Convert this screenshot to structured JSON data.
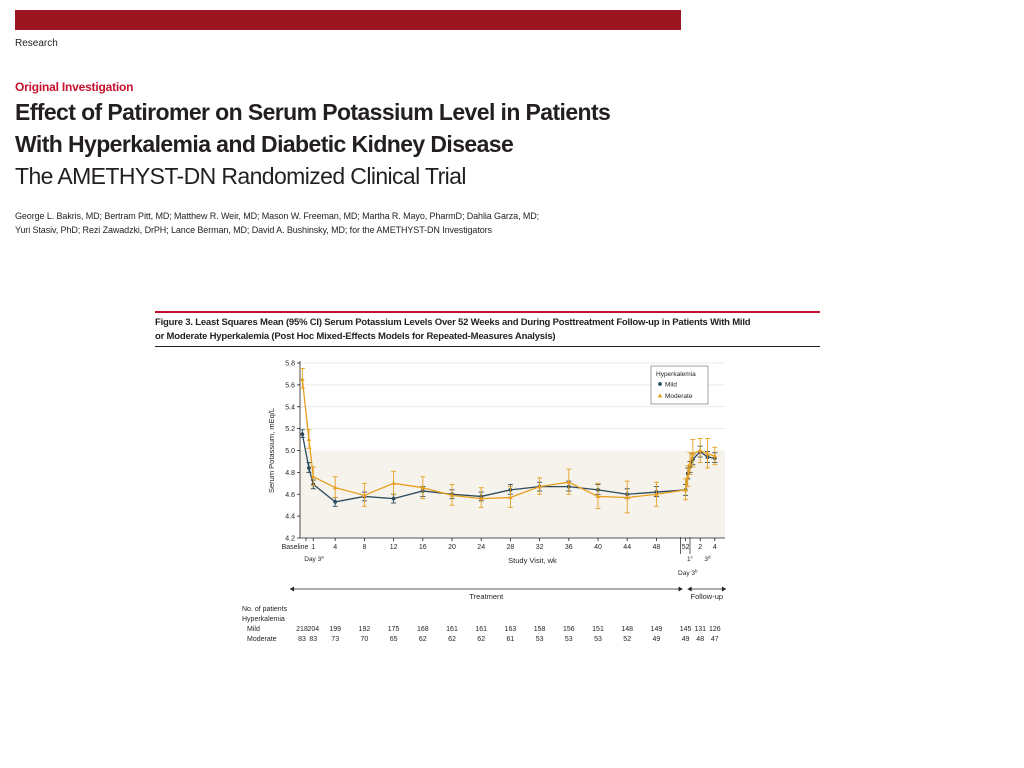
{
  "header": {
    "section": "Research",
    "article_type": "Original Investigation"
  },
  "article": {
    "title_line1": "Effect of Patiromer on Serum Potassium Level in Patients",
    "title_line2": "With Hyperkalemia and Diabetic Kidney Disease",
    "subtitle": "The AMETHYST-DN Randomized Clinical Trial",
    "authors_line1": "George L. Bakris, MD; Bertram Pitt, MD; Matthew R. Weir, MD; Mason W. Freeman, MD; Martha R. Mayo, PharmD; Dahlia Garza, MD;",
    "authors_line2": "Yuri Stasiv, PhD; Rezi Zawadzki, DrPH; Lance Berman, MD; David A. Bushinsky, MD; for the AMETHYST-DN Investigators"
  },
  "figure": {
    "caption_line1": "Figure 3. Least Squares Mean (95% CI) Serum Potassium Levels Over 52 Weeks and During Posttreatment Follow-up in Patients With Mild",
    "caption_line2": "or Moderate Hyperkalemia (Post Hoc Mixed-Effects Models for Repeated-Measures Analysis)"
  },
  "colors": {
    "brand_bar": "#9b1520",
    "accent": "#c8102e",
    "mild": "#2c4a5c",
    "moderate": "#e8a020",
    "band": "#f5f3ec"
  },
  "chart_data": {
    "type": "line",
    "xlabel": "Study Visit, wk",
    "ylabel": "Serum Potassium, mEq/L",
    "ylim": [
      4.2,
      5.8
    ],
    "yticks": [
      4.2,
      4.4,
      4.6,
      4.8,
      5.0,
      5.2,
      5.4,
      5.6,
      5.8
    ],
    "shaded_band": [
      4.0,
      5.0
    ],
    "legend": {
      "title": "Hyperkalemia",
      "position": "top-right"
    },
    "x_tick_labels": [
      {
        "t": "Baseline",
        "x": 0
      },
      {
        "t": "1",
        "x": 1
      },
      {
        "t": "4",
        "x": 4
      },
      {
        "t": "8",
        "x": 8
      },
      {
        "t": "12",
        "x": 12
      },
      {
        "t": "16",
        "x": 16
      },
      {
        "t": "20",
        "x": 20
      },
      {
        "t": "24",
        "x": 24
      },
      {
        "t": "28",
        "x": 28
      },
      {
        "t": "32",
        "x": 32
      },
      {
        "t": "36",
        "x": 36
      },
      {
        "t": "40",
        "x": 40
      },
      {
        "t": "44",
        "x": 44
      },
      {
        "t": "48",
        "x": 48
      },
      {
        "t": "52",
        "x": 52
      },
      {
        "t": "2",
        "x": 54
      },
      {
        "t": "4",
        "x": 56
      }
    ],
    "x_sub_labels": [
      {
        "t": "Day 3",
        "sup": "a",
        "x": 0
      },
      {
        "t": "1",
        "sup": "c",
        "x": 52.6
      },
      {
        "t": "3",
        "sup": "d",
        "x": 55
      },
      {
        "t": "Day 3",
        "sup": "b",
        "x": 52.3
      }
    ],
    "phases": [
      {
        "label": "Treatment",
        "from": 0,
        "to": 52
      },
      {
        "label": "Follow-up",
        "from": 52,
        "to": 56
      }
    ],
    "series": [
      {
        "name": "Mild",
        "marker": "circle",
        "points": [
          {
            "x": -0.5,
            "y": 5.15,
            "lo": 5.12,
            "hi": 5.19
          },
          {
            "x": 0.4,
            "y": 4.84,
            "lo": 4.8,
            "hi": 4.89
          },
          {
            "x": 1,
            "y": 4.69,
            "lo": 4.65,
            "hi": 4.73
          },
          {
            "x": 4,
            "y": 4.53,
            "lo": 4.49,
            "hi": 4.57
          },
          {
            "x": 8,
            "y": 4.58,
            "lo": 4.54,
            "hi": 4.62
          },
          {
            "x": 12,
            "y": 4.56,
            "lo": 4.52,
            "hi": 4.6
          },
          {
            "x": 16,
            "y": 4.63,
            "lo": 4.58,
            "hi": 4.67
          },
          {
            "x": 20,
            "y": 4.6,
            "lo": 4.56,
            "hi": 4.64
          },
          {
            "x": 24,
            "y": 4.58,
            "lo": 4.54,
            "hi": 4.62
          },
          {
            "x": 28,
            "y": 4.64,
            "lo": 4.6,
            "hi": 4.69
          },
          {
            "x": 32,
            "y": 4.67,
            "lo": 4.63,
            "hi": 4.71
          },
          {
            "x": 36,
            "y": 4.67,
            "lo": 4.63,
            "hi": 4.72
          },
          {
            "x": 40,
            "y": 4.64,
            "lo": 4.6,
            "hi": 4.69
          },
          {
            "x": 44,
            "y": 4.6,
            "lo": 4.56,
            "hi": 4.65
          },
          {
            "x": 48,
            "y": 4.62,
            "lo": 4.58,
            "hi": 4.67
          },
          {
            "x": 52,
            "y": 4.64,
            "lo": 4.59,
            "hi": 4.69
          },
          {
            "x": 52.3,
            "y": 4.79,
            "lo": 4.74,
            "hi": 4.84
          },
          {
            "x": 52.6,
            "y": 4.85,
            "lo": 4.8,
            "hi": 4.9
          },
          {
            "x": 53,
            "y": 4.92,
            "lo": 4.87,
            "hi": 4.97
          },
          {
            "x": 54,
            "y": 4.99,
            "lo": 4.94,
            "hi": 5.04
          },
          {
            "x": 55,
            "y": 4.94,
            "lo": 4.89,
            "hi": 4.99
          },
          {
            "x": 56,
            "y": 4.93,
            "lo": 4.89,
            "hi": 4.98
          }
        ]
      },
      {
        "name": "Moderate",
        "marker": "triangle",
        "points": [
          {
            "x": -0.5,
            "y": 5.65,
            "lo": 5.57,
            "hi": 5.75
          },
          {
            "x": 0.4,
            "y": 5.1,
            "lo": 5.02,
            "hi": 5.19
          },
          {
            "x": 1,
            "y": 4.76,
            "lo": 4.68,
            "hi": 4.85
          },
          {
            "x": 4,
            "y": 4.66,
            "lo": 4.57,
            "hi": 4.76
          },
          {
            "x": 8,
            "y": 4.59,
            "lo": 4.49,
            "hi": 4.7
          },
          {
            "x": 12,
            "y": 4.7,
            "lo": 4.6,
            "hi": 4.81
          },
          {
            "x": 16,
            "y": 4.66,
            "lo": 4.56,
            "hi": 4.76
          },
          {
            "x": 20,
            "y": 4.59,
            "lo": 4.5,
            "hi": 4.69
          },
          {
            "x": 24,
            "y": 4.56,
            "lo": 4.48,
            "hi": 4.66
          },
          {
            "x": 28,
            "y": 4.57,
            "lo": 4.48,
            "hi": 4.67
          },
          {
            "x": 32,
            "y": 4.67,
            "lo": 4.6,
            "hi": 4.75
          },
          {
            "x": 36,
            "y": 4.71,
            "lo": 4.6,
            "hi": 4.83
          },
          {
            "x": 40,
            "y": 4.58,
            "lo": 4.47,
            "hi": 4.7
          },
          {
            "x": 44,
            "y": 4.57,
            "lo": 4.43,
            "hi": 4.72
          },
          {
            "x": 48,
            "y": 4.6,
            "lo": 4.49,
            "hi": 4.71
          },
          {
            "x": 52,
            "y": 4.64,
            "lo": 4.55,
            "hi": 4.74
          },
          {
            "x": 52.3,
            "y": 4.76,
            "lo": 4.67,
            "hi": 4.86
          },
          {
            "x": 52.6,
            "y": 4.88,
            "lo": 4.78,
            "hi": 4.98
          },
          {
            "x": 53,
            "y": 4.97,
            "lo": 4.85,
            "hi": 5.1
          },
          {
            "x": 54,
            "y": 5.0,
            "lo": 4.89,
            "hi": 5.11
          },
          {
            "x": 55,
            "y": 4.97,
            "lo": 4.84,
            "hi": 5.11
          },
          {
            "x": 56,
            "y": 4.95,
            "lo": 4.87,
            "hi": 5.03
          }
        ]
      }
    ],
    "patients_table": {
      "title": "No. of patients",
      "group_label": "Hyperkalemia",
      "rows": [
        {
          "label": "Mild",
          "counts": [
            {
              "x": 0,
              "n": "218"
            },
            {
              "x": 1,
              "n": "204"
            },
            {
              "x": 4,
              "n": "199"
            },
            {
              "x": 8,
              "n": "192"
            },
            {
              "x": 12,
              "n": "175"
            },
            {
              "x": 16,
              "n": "168"
            },
            {
              "x": 20,
              "n": "161"
            },
            {
              "x": 24,
              "n": "161"
            },
            {
              "x": 28,
              "n": "163"
            },
            {
              "x": 32,
              "n": "158"
            },
            {
              "x": 36,
              "n": "156"
            },
            {
              "x": 40,
              "n": "151"
            },
            {
              "x": 44,
              "n": "148"
            },
            {
              "x": 48,
              "n": "149"
            },
            {
              "x": 52,
              "n": "145"
            },
            {
              "x": 54,
              "n": "131"
            },
            {
              "x": 56,
              "n": "126"
            }
          ]
        },
        {
          "label": "Moderate",
          "counts": [
            {
              "x": 0,
              "n": "83"
            },
            {
              "x": 1,
              "n": "83"
            },
            {
              "x": 4,
              "n": "73"
            },
            {
              "x": 8,
              "n": "70"
            },
            {
              "x": 12,
              "n": "65"
            },
            {
              "x": 16,
              "n": "62"
            },
            {
              "x": 20,
              "n": "62"
            },
            {
              "x": 24,
              "n": "62"
            },
            {
              "x": 28,
              "n": "61"
            },
            {
              "x": 32,
              "n": "53"
            },
            {
              "x": 36,
              "n": "53"
            },
            {
              "x": 40,
              "n": "53"
            },
            {
              "x": 44,
              "n": "52"
            },
            {
              "x": 48,
              "n": "49"
            },
            {
              "x": 52,
              "n": "49"
            },
            {
              "x": 54,
              "n": "48"
            },
            {
              "x": 56,
              "n": "47"
            }
          ]
        }
      ]
    }
  }
}
